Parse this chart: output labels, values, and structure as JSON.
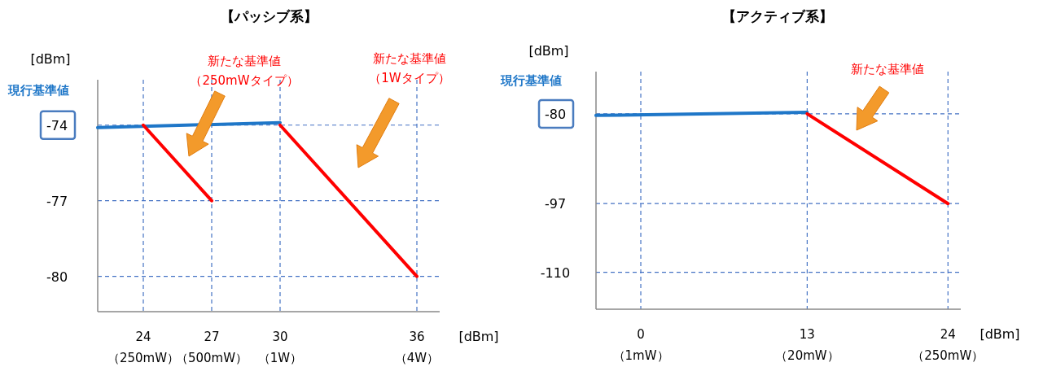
{
  "chart_data": [
    {
      "type": "line",
      "title": "【パッシブ系】",
      "xlabel": "[dBm]",
      "ylabel": "[dBm]",
      "xlim": [
        22,
        37
      ],
      "ylim": [
        -81.4,
        -72.2
      ],
      "xticks": [
        24,
        27,
        30,
        36
      ],
      "yticks": [
        -80,
        -77,
        -74
      ],
      "grid": true,
      "series": [
        {
          "color": "#1f77c8",
          "x": [
            22,
            30
          ],
          "values": [
            -74.1,
            -73.9
          ]
        },
        {
          "color": "#ff0000",
          "x": [
            24,
            27
          ],
          "values": [
            -74,
            -77
          ]
        },
        {
          "color": "#ff0000",
          "x": [
            30,
            36
          ],
          "values": [
            -74,
            -80
          ]
        }
      ],
      "annotations": [
        "現行基準値",
        "新たな基準値（250mWタイプ）",
        "新たな基準値（1Wタイプ）",
        "（250mW）",
        "（500mW）",
        "（1W）",
        "（4W）"
      ]
    },
    {
      "type": "line",
      "title": "【アクティブ系】",
      "xlabel": "[dBm]",
      "ylabel": "[dBm]",
      "xlim": [
        -3.5,
        25
      ],
      "ylim": [
        -117,
        -72
      ],
      "xticks": [
        0,
        13,
        24
      ],
      "yticks": [
        -110,
        -97,
        -80
      ],
      "grid": true,
      "series": [
        {
          "color": "#1f77c8",
          "x": [
            -3.5,
            13
          ],
          "values": [
            -80.3,
            -79.7
          ]
        },
        {
          "color": "#ff0000",
          "x": [
            13,
            24
          ],
          "values": [
            -80,
            -97
          ]
        }
      ],
      "annotations": [
        "現行基準値",
        "新たな基準値",
        "（1mW）",
        "（20mW）",
        "（250mW）"
      ]
    }
  ]
}
